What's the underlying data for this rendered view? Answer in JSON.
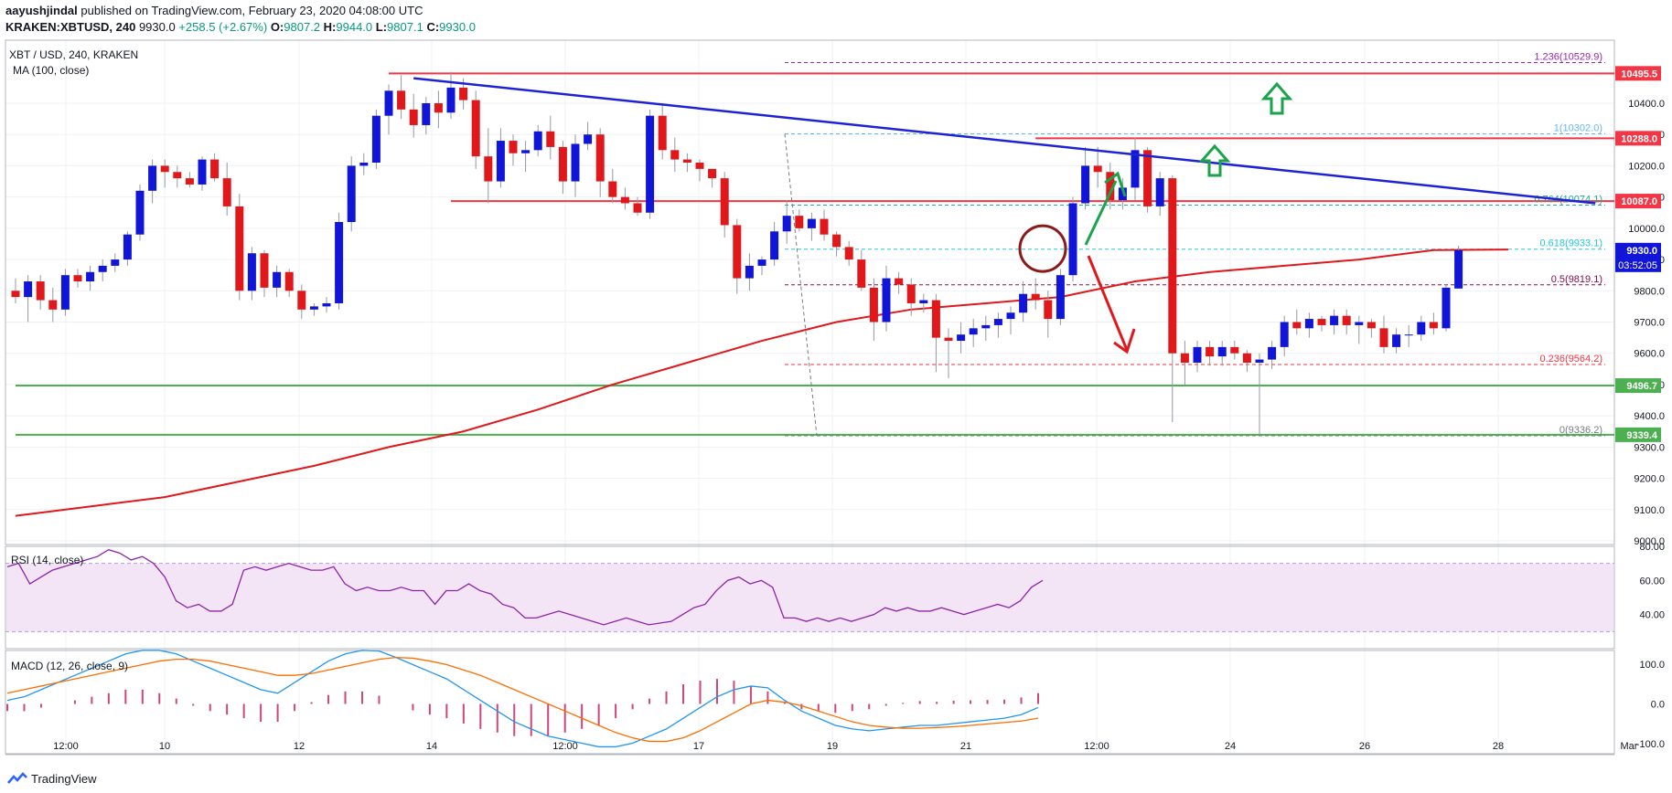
{
  "header": {
    "author": "aayushjindal",
    "published": "published on TradingView.com, February 23, 2020 04:08:00 UTC",
    "symbol_line": "KRAKEN:XBTUSD, 240",
    "last": "9930.0",
    "change": "+258.5 (+2.67%)",
    "o_label": "O:",
    "o": "9807.2",
    "h_label": "H:",
    "h": "9944.0",
    "l_label": "L:",
    "l": "9807.1",
    "c_label": "C:",
    "c": "9930.0"
  },
  "footer": {
    "brand": "TradingView"
  },
  "chart_data": {
    "type": "candlestick",
    "title": "XBT / USD, 240, KRAKEN",
    "indicator_label": "MA (100, close)",
    "ylim": [
      9000,
      10600
    ],
    "y_ticks": [
      9000,
      9100,
      9200,
      9300,
      9400,
      9500,
      9600,
      9700,
      9800,
      9900,
      10000,
      10100,
      10200,
      10300,
      10400
    ],
    "y_tick_labels": [
      "9000.0",
      "9100.0",
      "9200.0",
      "9300.0",
      "9400.0",
      "9500.0",
      "9600.0",
      "9700.0",
      "9800.0",
      "9900.0",
      "10000.0",
      "10100.0",
      "10200.0",
      "10300.0",
      "10400.0"
    ],
    "x_ticks": [
      "12:00",
      "10",
      "12",
      "14",
      "12:00",
      "17",
      "19",
      "21",
      "12:00",
      "24",
      "26",
      "28",
      "Mar"
    ],
    "candles": [
      [
        9800,
        9840,
        9760,
        9780
      ],
      [
        9780,
        9850,
        9700,
        9830
      ],
      [
        9830,
        9850,
        9740,
        9770
      ],
      [
        9770,
        9810,
        9700,
        9740
      ],
      [
        9740,
        9870,
        9720,
        9850
      ],
      [
        9850,
        9870,
        9810,
        9830
      ],
      [
        9830,
        9880,
        9800,
        9860
      ],
      [
        9860,
        9900,
        9830,
        9880
      ],
      [
        9880,
        9920,
        9860,
        9900
      ],
      [
        9900,
        9990,
        9880,
        9980
      ],
      [
        9980,
        10140,
        9960,
        10120
      ],
      [
        10120,
        10220,
        10080,
        10200
      ],
      [
        10200,
        10220,
        10130,
        10180
      ],
      [
        10180,
        10200,
        10130,
        10160
      ],
      [
        10160,
        10180,
        10130,
        10140
      ],
      [
        10140,
        10230,
        10120,
        10220
      ],
      [
        10220,
        10240,
        10150,
        10160
      ],
      [
        10160,
        10210,
        10040,
        10070
      ],
      [
        10070,
        10110,
        9770,
        9800
      ],
      [
        9800,
        9940,
        9770,
        9920
      ],
      [
        9920,
        9930,
        9780,
        9810
      ],
      [
        9810,
        9880,
        9780,
        9860
      ],
      [
        9860,
        9870,
        9780,
        9800
      ],
      [
        9800,
        9820,
        9710,
        9740
      ],
      [
        9740,
        9760,
        9720,
        9750
      ],
      [
        9750,
        9780,
        9730,
        9760
      ],
      [
        9760,
        10050,
        9740,
        10020
      ],
      [
        10020,
        10230,
        9990,
        10200
      ],
      [
        10200,
        10240,
        10170,
        10210
      ],
      [
        10210,
        10380,
        10190,
        10360
      ],
      [
        10360,
        10460,
        10300,
        10440
      ],
      [
        10440,
        10490,
        10350,
        10380
      ],
      [
        10380,
        10430,
        10290,
        10330
      ],
      [
        10330,
        10420,
        10300,
        10400
      ],
      [
        10400,
        10440,
        10320,
        10370
      ],
      [
        10370,
        10500,
        10350,
        10450
      ],
      [
        10450,
        10480,
        10380,
        10410
      ],
      [
        10410,
        10440,
        10190,
        10230
      ],
      [
        10230,
        10320,
        10080,
        10150
      ],
      [
        10150,
        10320,
        10130,
        10280
      ],
      [
        10280,
        10300,
        10200,
        10240
      ],
      [
        10240,
        10280,
        10180,
        10250
      ],
      [
        10250,
        10330,
        10230,
        10310
      ],
      [
        10310,
        10360,
        10220,
        10260
      ],
      [
        10260,
        10280,
        10110,
        10150
      ],
      [
        10150,
        10300,
        10100,
        10270
      ],
      [
        10270,
        10340,
        10250,
        10300
      ],
      [
        10300,
        10320,
        10100,
        10150
      ],
      [
        10150,
        10190,
        10080,
        10100
      ],
      [
        10100,
        10130,
        10060,
        10080
      ],
      [
        10080,
        10100,
        10040,
        10050
      ],
      [
        10050,
        10380,
        10030,
        10360
      ],
      [
        10360,
        10400,
        10220,
        10250
      ],
      [
        10250,
        10290,
        10180,
        10220
      ],
      [
        10220,
        10240,
        10180,
        10210
      ],
      [
        10210,
        10220,
        10150,
        10190
      ],
      [
        10190,
        10190,
        10130,
        10160
      ],
      [
        10160,
        10180,
        9970,
        10010
      ],
      [
        10010,
        10030,
        9790,
        9840
      ],
      [
        9840,
        9920,
        9800,
        9880
      ],
      [
        9880,
        9910,
        9850,
        9900
      ],
      [
        9900,
        10020,
        9880,
        9990
      ],
      [
        9990,
        10090,
        9950,
        10040
      ],
      [
        10040,
        10060,
        9990,
        10000
      ],
      [
        10000,
        10050,
        9960,
        10030
      ],
      [
        10030,
        10060,
        9960,
        9980
      ],
      [
        9980,
        9990,
        9910,
        9940
      ],
      [
        9940,
        9960,
        9880,
        9900
      ],
      [
        9900,
        9930,
        9800,
        9810
      ],
      [
        9810,
        9840,
        9640,
        9700
      ],
      [
        9700,
        9880,
        9670,
        9840
      ],
      [
        9840,
        9860,
        9790,
        9820
      ],
      [
        9820,
        9840,
        9720,
        9760
      ],
      [
        9760,
        9790,
        9730,
        9770
      ],
      [
        9770,
        9790,
        9540,
        9650
      ],
      [
        9650,
        9680,
        9520,
        9640
      ],
      [
        9640,
        9700,
        9600,
        9660
      ],
      [
        9660,
        9710,
        9620,
        9680
      ],
      [
        9680,
        9720,
        9640,
        9690
      ],
      [
        9690,
        9730,
        9650,
        9710
      ],
      [
        9710,
        9750,
        9660,
        9730
      ],
      [
        9730,
        9830,
        9700,
        9790
      ],
      [
        9790,
        9840,
        9740,
        9770
      ],
      [
        9770,
        9800,
        9650,
        9710
      ],
      [
        9710,
        9870,
        9690,
        9850
      ],
      [
        9850,
        10100,
        9830,
        10080
      ],
      [
        10080,
        10260,
        10060,
        10200
      ],
      [
        10200,
        10260,
        10130,
        10180
      ],
      [
        10180,
        10210,
        10060,
        10090
      ],
      [
        10090,
        10160,
        10060,
        10130
      ],
      [
        10130,
        10290,
        10090,
        10250
      ],
      [
        10250,
        10260,
        10050,
        10070
      ],
      [
        10070,
        10180,
        10040,
        10160
      ],
      [
        10160,
        10170,
        9380,
        9600
      ],
      [
        9600,
        9640,
        9500,
        9570
      ],
      [
        9570,
        9640,
        9540,
        9620
      ],
      [
        9620,
        9640,
        9560,
        9590
      ],
      [
        9590,
        9640,
        9560,
        9620
      ],
      [
        9620,
        9640,
        9580,
        9600
      ],
      [
        9600,
        9610,
        9540,
        9570
      ],
      [
        9570,
        9600,
        9340,
        9580
      ],
      [
        9580,
        9640,
        9550,
        9620
      ],
      [
        9620,
        9720,
        9590,
        9700
      ],
      [
        9700,
        9740,
        9660,
        9680
      ],
      [
        9680,
        9730,
        9650,
        9710
      ],
      [
        9710,
        9720,
        9670,
        9690
      ],
      [
        9690,
        9740,
        9660,
        9720
      ],
      [
        9720,
        9740,
        9660,
        9690
      ],
      [
        9690,
        9720,
        9630,
        9700
      ],
      [
        9700,
        9710,
        9650,
        9680
      ],
      [
        9680,
        9720,
        9600,
        9620
      ],
      [
        9620,
        9680,
        9600,
        9660
      ],
      [
        9660,
        9690,
        9620,
        9660
      ],
      [
        9660,
        9720,
        9640,
        9700
      ],
      [
        9700,
        9730,
        9660,
        9680
      ],
      [
        9680,
        9820,
        9670,
        9810
      ],
      [
        9807.2,
        9944.0,
        9807.1,
        9930.0
      ]
    ],
    "ma_label": "MA 100",
    "ma100": [
      [
        0,
        9080
      ],
      [
        6,
        9110
      ],
      [
        12,
        9140
      ],
      [
        18,
        9190
      ],
      [
        24,
        9240
      ],
      [
        30,
        9300
      ],
      [
        36,
        9350
      ],
      [
        42,
        9420
      ],
      [
        48,
        9500
      ],
      [
        54,
        9570
      ],
      [
        60,
        9640
      ],
      [
        66,
        9700
      ],
      [
        72,
        9740
      ],
      [
        78,
        9760
      ],
      [
        84,
        9780
      ],
      [
        90,
        9830
      ],
      [
        96,
        9860
      ],
      [
        102,
        9880
      ],
      [
        108,
        9900
      ],
      [
        114,
        9930
      ],
      [
        120,
        9932
      ]
    ],
    "horizontal_levels": [
      {
        "label": "10495.5",
        "value": 10495.5,
        "color": "#f23645",
        "x_from": 30
      },
      {
        "label": "10288.0",
        "value": 10288.0,
        "color": "#f23645",
        "x_from": 82
      },
      {
        "label": "10087.0",
        "value": 10087.0,
        "color": "#f23645",
        "x_from": 35
      },
      {
        "label": "9496.7",
        "value": 9496.7,
        "color": "#4caf50",
        "x_from": 0
      },
      {
        "label": "9339.4",
        "value": 9339.4,
        "color": "#4caf50",
        "x_from": 0
      }
    ],
    "fib_levels": [
      {
        "label": "1.236(10529.9)",
        "value": 10529.9,
        "color": "#9c27b0"
      },
      {
        "label": "1(10302.0)",
        "value": 10302.0,
        "color": "#64b5f6"
      },
      {
        "label": "0.764(10074.1)",
        "value": 10074.1,
        "color": "#26a69a"
      },
      {
        "label": "0.618(9933.1)",
        "value": 9933.1,
        "color": "#26c6da"
      },
      {
        "label": "0.5(9819.1)",
        "value": 9819.1,
        "color": "#880e4f"
      },
      {
        "label": "0.236(9564.2)",
        "value": 9564.2,
        "color": "#f23645"
      },
      {
        "label": "0(9336.2)",
        "value": 9336.2,
        "color": "#787b86"
      }
    ],
    "trendline": {
      "from": [
        32,
        10480
      ],
      "to": [
        127,
        10080
      ],
      "color": "#1e22d6"
    },
    "price_label": "9930.0",
    "countdown_label": "03:52:05",
    "rsi": {
      "label": "RSI (14, close)",
      "ylim": [
        20,
        80
      ],
      "ticks": [
        "80.00",
        "60.00",
        "40.00"
      ],
      "band": [
        30,
        70
      ],
      "values": [
        68,
        70,
        58,
        62,
        66,
        68,
        70,
        72,
        74,
        78,
        76,
        72,
        74,
        70,
        62,
        48,
        44,
        46,
        42,
        42,
        46,
        66,
        68,
        66,
        68,
        70,
        68,
        66,
        66,
        68,
        58,
        54,
        56,
        54,
        54,
        56,
        54,
        54,
        46,
        54,
        54,
        58,
        54,
        52,
        46,
        44,
        38,
        38,
        40,
        42,
        40,
        38,
        36,
        34,
        36,
        38,
        36,
        34,
        35,
        36,
        40,
        44,
        46,
        54,
        60,
        62,
        58,
        60,
        56,
        38,
        38,
        36,
        38,
        36,
        38,
        36,
        38,
        40,
        44,
        42,
        44,
        42,
        42,
        44,
        42,
        40,
        42,
        44,
        46,
        44,
        48,
        56,
        60
      ]
    },
    "macd": {
      "label": "MACD (12, 26, close, 9)",
      "ylim": [
        -130,
        130
      ],
      "ticks": [
        "100.0",
        "0.0",
        "-100.0"
      ],
      "macd_line": [
        10,
        20,
        40,
        60,
        80,
        100,
        120,
        140,
        150,
        150,
        140,
        120,
        100,
        80,
        60,
        40,
        30,
        60,
        90,
        120,
        140,
        150,
        148,
        130,
        110,
        90,
        70,
        40,
        10,
        -20,
        -50,
        -70,
        -90,
        -100,
        -110,
        -120,
        -120,
        -110,
        -90,
        -70,
        -40,
        -10,
        20,
        40,
        50,
        45,
        10,
        -20,
        -40,
        -60,
        -70,
        -75,
        -70,
        -65,
        -60,
        -60,
        -55,
        -50,
        -45,
        -40,
        -30,
        -10
      ],
      "signal_line": [
        30,
        40,
        50,
        60,
        70,
        80,
        90,
        100,
        110,
        120,
        125,
        125,
        120,
        110,
        100,
        90,
        80,
        80,
        85,
        95,
        105,
        115,
        125,
        130,
        128,
        120,
        110,
        95,
        80,
        60,
        40,
        20,
        0,
        -20,
        -40,
        -60,
        -80,
        -95,
        -105,
        -105,
        -95,
        -75,
        -50,
        -25,
        0,
        10,
        5,
        -5,
        -20,
        -35,
        -50,
        -60,
        -65,
        -68,
        -68,
        -66,
        -64,
        -60,
        -56,
        -52,
        -48,
        -40
      ]
    }
  }
}
